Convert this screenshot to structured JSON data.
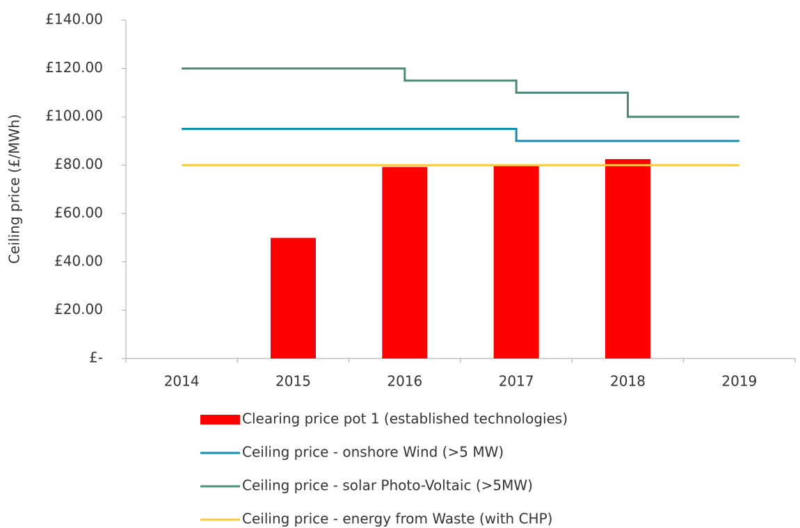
{
  "chart_data": {
    "type": "bar",
    "categories": [
      "2014",
      "2015",
      "2016",
      "2017",
      "2018",
      "2019"
    ],
    "y_label": "Ceiling price (£/MWh)",
    "ylim": [
      0,
      140
    ],
    "yticks": [
      {
        "value": 0,
        "label": "£-"
      },
      {
        "value": 20,
        "label": "£20.00"
      },
      {
        "value": 40,
        "label": "£40.00"
      },
      {
        "value": 60,
        "label": "£60.00"
      },
      {
        "value": 80,
        "label": "£80.00"
      },
      {
        "value": 100,
        "label": "£100.00"
      },
      {
        "value": 120,
        "label": "£120.00"
      },
      {
        "value": 140,
        "label": "£140.00"
      }
    ],
    "grid": false,
    "legend": "bottom",
    "series": [
      {
        "name": "Clearing price pot 1 (established technologies)",
        "type": "bar",
        "color": "#ff0000",
        "values": [
          null,
          49.9,
          79.23,
          79.99,
          82.5,
          null
        ]
      },
      {
        "name": "Ceiling price - onshore Wind (>5 MW)",
        "type": "step",
        "color": "#0e8fb0",
        "values": [
          95,
          95,
          95,
          90,
          90,
          90
        ]
      },
      {
        "name": "Ceiling price - solar Photo-Voltaic (>5MW)",
        "type": "step",
        "color": "#4a8a78",
        "values": [
          120,
          120,
          115,
          110,
          100,
          100
        ]
      },
      {
        "name": "Ceiling price - energy from Waste (with CHP)",
        "type": "step",
        "color": "#ffc83d",
        "values": [
          80,
          80,
          80,
          80,
          80,
          80
        ]
      }
    ]
  }
}
